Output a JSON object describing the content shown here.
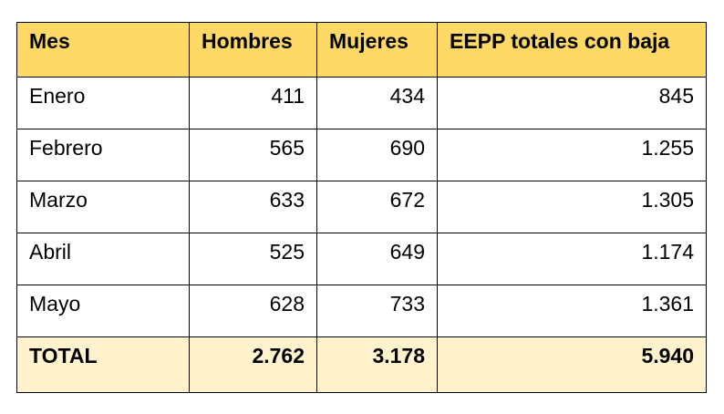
{
  "table": {
    "headers": [
      "Mes",
      "Hombres",
      "Mujeres",
      "EEPP totales con baja"
    ],
    "rows": [
      {
        "mes": "Enero",
        "hombres": "411",
        "mujeres": "434",
        "total": "845"
      },
      {
        "mes": "Febrero",
        "hombres": "565",
        "mujeres": "690",
        "total": "1.255"
      },
      {
        "mes": "Marzo",
        "hombres": "633",
        "mujeres": "672",
        "total": "1.305"
      },
      {
        "mes": "Abril",
        "hombres": "525",
        "mujeres": "649",
        "total": "1.174"
      },
      {
        "mes": "Mayo",
        "hombres": "628",
        "mujeres": "733",
        "total": "1.361"
      }
    ],
    "footer": {
      "mes": "TOTAL",
      "hombres": "2.762",
      "mujeres": "3.178",
      "total": "5.940"
    }
  },
  "colors": {
    "header_background": "#ffd966",
    "footer_background": "#fff2cc",
    "border": "#000000"
  }
}
